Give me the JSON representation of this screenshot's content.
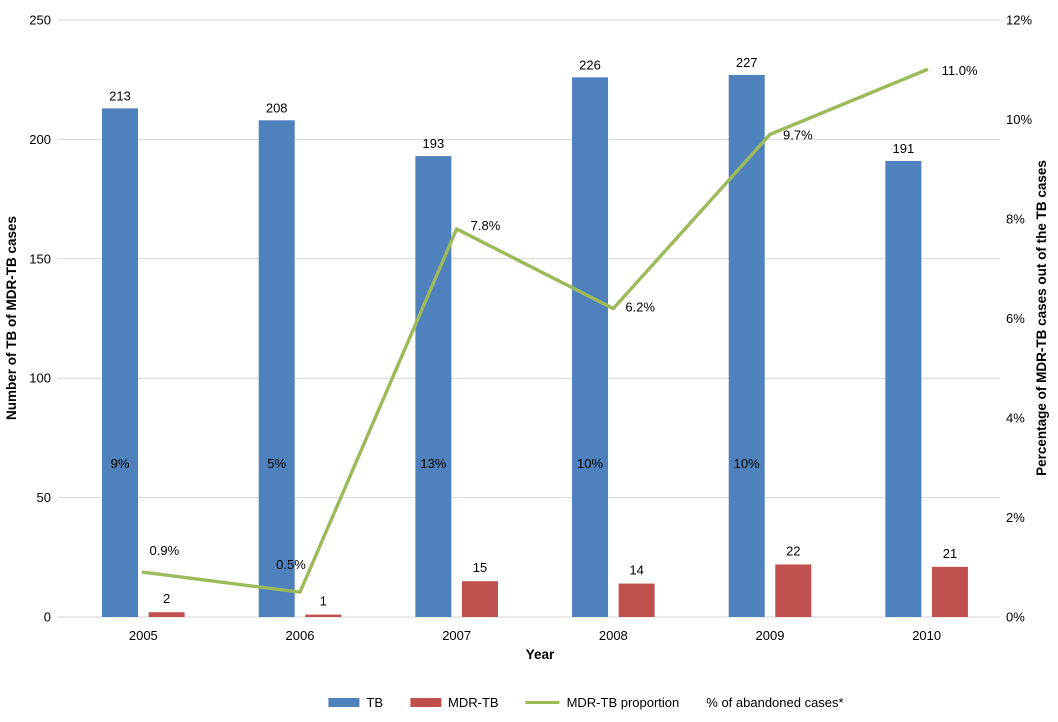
{
  "chart_data": {
    "type": "bar+line combo",
    "title": "",
    "xlabel": "Year",
    "ylabel_left": "Number of TB of MDR-TB cases",
    "ylabel_right": "Percentage of MDR-TB cases out of the TB cases",
    "categories": [
      "2005",
      "2006",
      "2007",
      "2008",
      "2009",
      "2010"
    ],
    "series": [
      {
        "name": "TB",
        "type": "bar",
        "color": "#4F81BD",
        "values": [
          213,
          208,
          193,
          226,
          227,
          191
        ],
        "value_labels": [
          "213",
          "208",
          "193",
          "226",
          "227",
          "191"
        ],
        "inner_labels": [
          "9%",
          "5%",
          "13%",
          "10%",
          "10%",
          ""
        ]
      },
      {
        "name": "MDR-TB",
        "type": "bar",
        "color": "#C0504D",
        "values": [
          2,
          1,
          15,
          14,
          22,
          21
        ],
        "value_labels": [
          "2",
          "1",
          "15",
          "14",
          "22",
          "21"
        ]
      },
      {
        "name": "MDR-TB proportion",
        "type": "line",
        "color": "#9BBB59",
        "values": [
          0.9,
          0.5,
          7.8,
          6.2,
          9.7,
          11.0
        ],
        "point_labels": [
          "0.9%",
          "0.5%",
          "7.8%",
          "6.2%",
          "9.7%",
          "11.0%"
        ]
      }
    ],
    "left_axis": {
      "min": 0,
      "max": 250,
      "tick_values": [
        250,
        200,
        150,
        100,
        50,
        0
      ],
      "tick_labels": [
        "250",
        "200",
        "150",
        "100",
        "50",
        "0"
      ]
    },
    "right_axis": {
      "min": 0,
      "max": 12,
      "tick_values": [
        12,
        10,
        8,
        6,
        4,
        2,
        0
      ],
      "tick_labels": [
        "12%",
        "10%",
        "8%",
        "6%",
        "4%",
        "2%",
        "0%"
      ]
    },
    "grid": true,
    "gridline_color": "#D6D6D6",
    "legend_position": "bottom",
    "legend": [
      {
        "label": "TB",
        "swatch": "bar",
        "color": "#4F81BD"
      },
      {
        "label": "MDR-TB",
        "swatch": "bar",
        "color": "#C0504D"
      },
      {
        "label": "MDR-TB proportion",
        "swatch": "line",
        "color": "#9BBB59"
      },
      {
        "label": "% of abandoned cases*",
        "swatch": "none",
        "color": ""
      }
    ]
  }
}
